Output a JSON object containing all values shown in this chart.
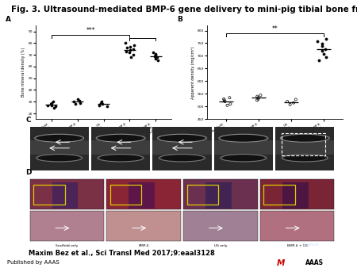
{
  "title": "Fig. 3. Ultrasound-mediated BMP-6 gene delivery to mini-pig tibial bone fractures.",
  "title_fontsize": 7.5,
  "title_fontweight": "bold",
  "citation": "Maxim Bez et al., Sci Transl Med 2017;9:eaal3128",
  "citation_fontsize": 6.0,
  "published_text": "Published by AAAS",
  "published_fontsize": 5.0,
  "bg_color": "#ffffff",
  "panel_label_fontsize": 6.5,
  "ylabel_A": "Bone mineral density (%)",
  "ylabel_B": "Apparent density (mg/cm³)",
  "labels_a": [
    "Scaffold\nonly",
    "BMP-6",
    "US\nonly",
    "BMP-6\n+US",
    "BMP-6\n+US\n(x2)"
  ],
  "labels_b": [
    "Scaffold\nonly",
    "BMP-6",
    "US\nonly",
    "BMP-6\n+US"
  ],
  "a_data_0": [
    27,
    25,
    28,
    30,
    26,
    29,
    27
  ],
  "a_data_1": [
    30,
    28,
    32,
    31,
    29
  ],
  "a_data_2": [
    28,
    26,
    30,
    27,
    29
  ],
  "a_data_3": [
    72,
    75,
    80,
    68,
    78,
    76,
    74,
    70,
    73,
    77
  ],
  "a_data_4": [
    65,
    68,
    70,
    72,
    67,
    69,
    71
  ],
  "b_data_0": [
    530,
    520,
    540,
    535,
    510,
    525
  ],
  "b_data_1": [
    540,
    530,
    550,
    545,
    535
  ],
  "b_data_2": [
    525,
    515,
    535,
    528
  ],
  "b_data_3": [
    700,
    720,
    750,
    730,
    710,
    740,
    760,
    680,
    770
  ],
  "sig_text_a": "***",
  "sig_text_b": "**",
  "journal_bg": "#1a3a6b",
  "journal_text_color": "#ffffff",
  "aaas_color": "#cc0000",
  "scaffold_label": "Scaffold only",
  "bmp6_label": "BMP-6",
  "us_label": "US only",
  "bmp6us_label": "BMP-6 + US"
}
